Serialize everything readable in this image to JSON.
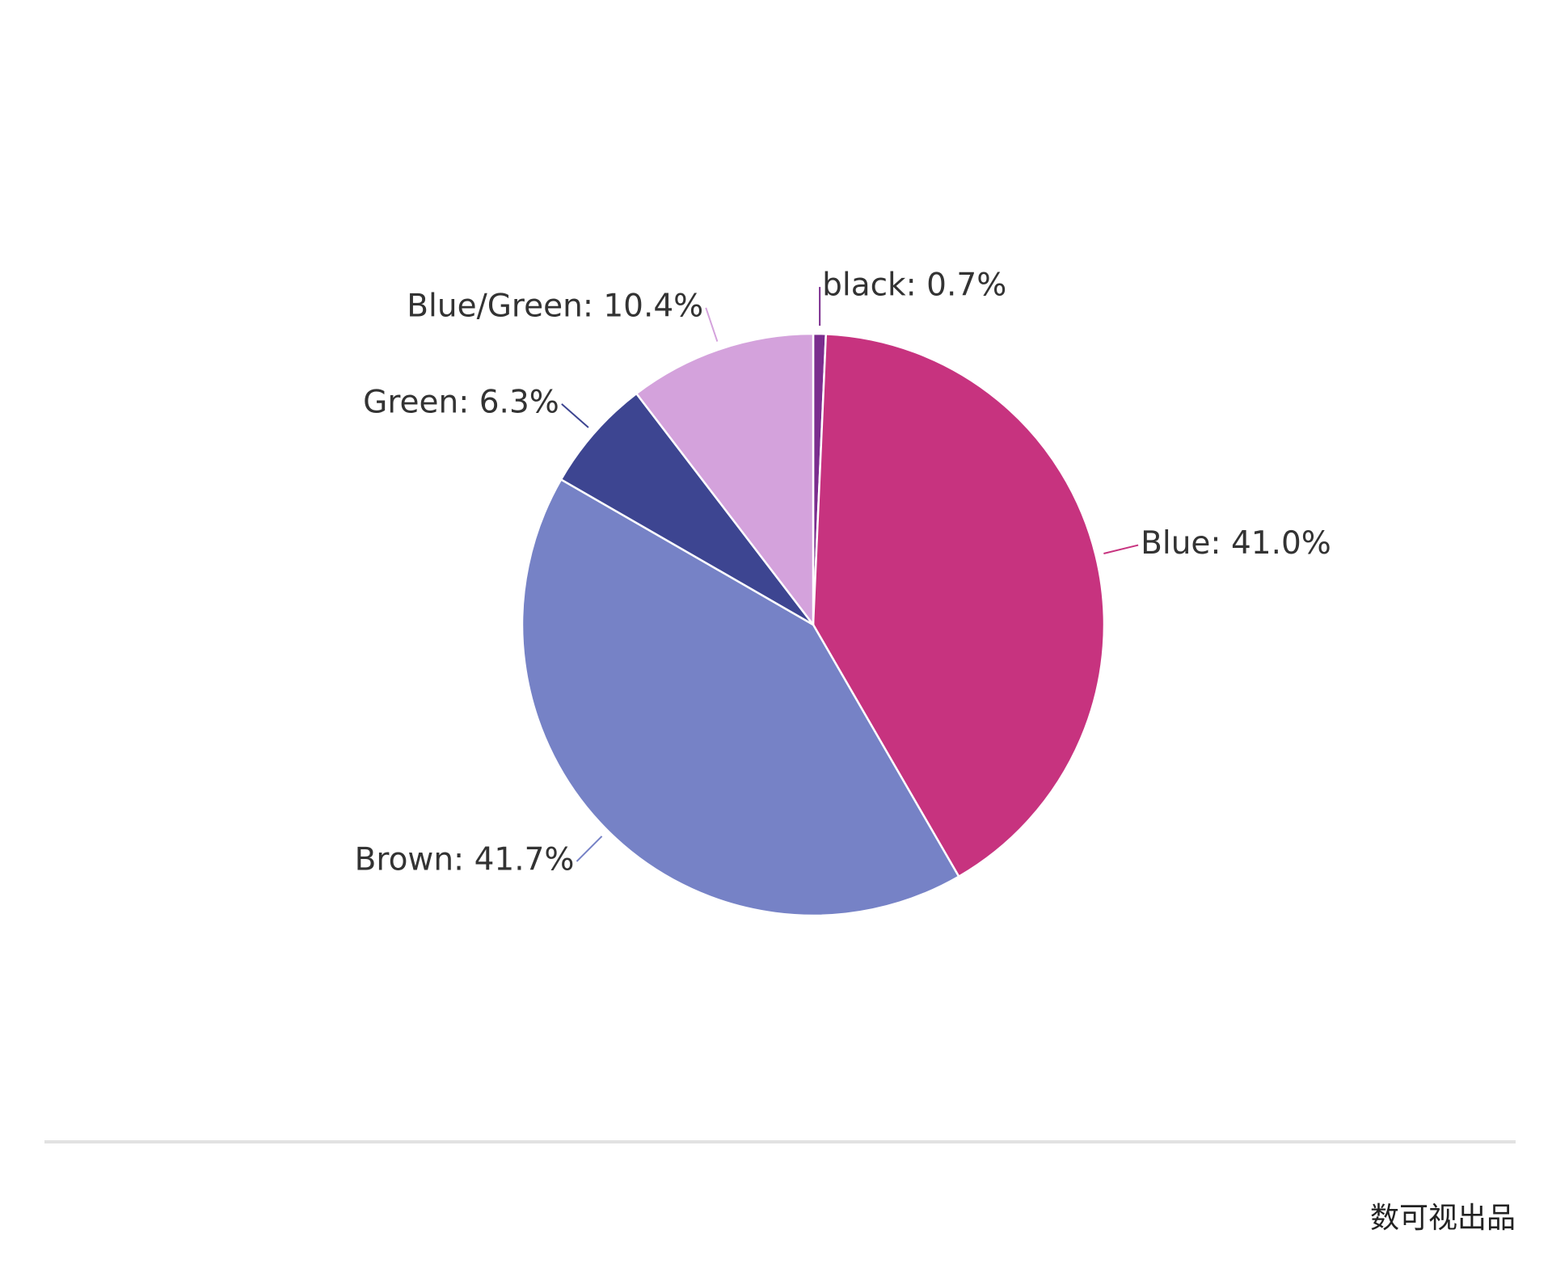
{
  "chart_data": {
    "type": "pie",
    "title": "",
    "slices": [
      {
        "label": "black",
        "value": 0.7,
        "display": "black: 0.7%",
        "color": "#7b2d8e"
      },
      {
        "label": "Blue",
        "value": 41.0,
        "display": "Blue: 41.0%",
        "color": "#c7337f"
      },
      {
        "label": "Brown",
        "value": 41.7,
        "display": "Brown: 41.7%",
        "color": "#7682c6"
      },
      {
        "label": "Green",
        "value": 6.3,
        "display": "Green: 6.3%",
        "color": "#3d4591"
      },
      {
        "label": "Blue/Green",
        "value": 10.4,
        "display": "Blue/Green: 10.4%",
        "color": "#d4a2dc"
      }
    ]
  },
  "footer": {
    "brand": "数可视出品"
  }
}
